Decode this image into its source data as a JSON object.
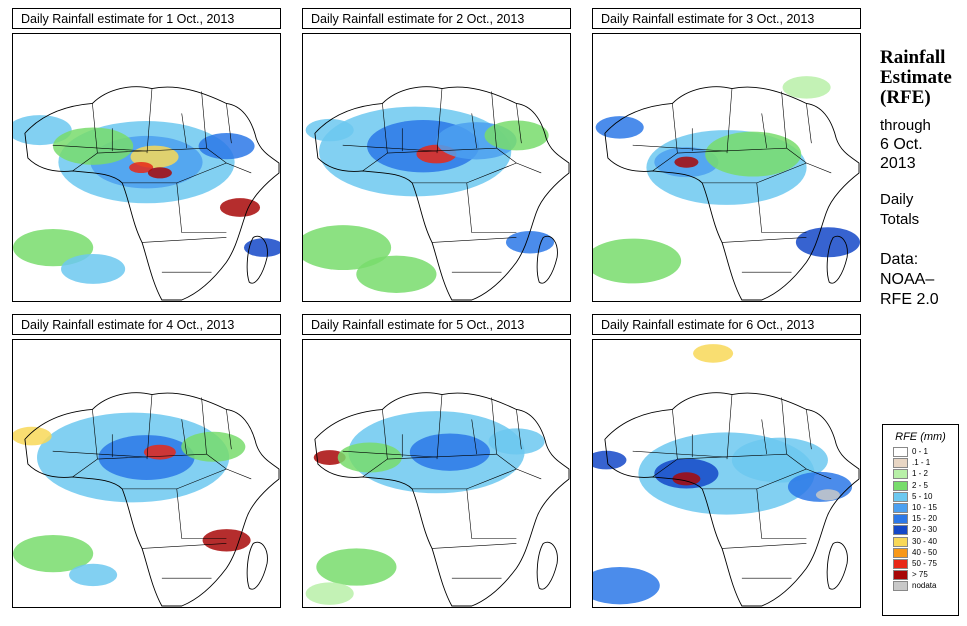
{
  "panels": [
    {
      "title": "Daily Rainfall estimate for  1 Oct., 2013",
      "blobs": [
        {
          "fx": 0.5,
          "fy": 0.48,
          "r": 0.22,
          "c": "c4"
        },
        {
          "fx": 0.5,
          "fy": 0.48,
          "r": 0.14,
          "c": "c5"
        },
        {
          "fx": 0.53,
          "fy": 0.46,
          "r": 0.06,
          "c": "c8"
        },
        {
          "fx": 0.48,
          "fy": 0.5,
          "r": 0.03,
          "c": "c10"
        },
        {
          "fx": 0.55,
          "fy": 0.52,
          "r": 0.03,
          "c": "c11"
        },
        {
          "fx": 0.1,
          "fy": 0.36,
          "r": 0.08,
          "c": "c4"
        },
        {
          "fx": 0.3,
          "fy": 0.42,
          "r": 0.1,
          "c": "c3"
        },
        {
          "fx": 0.8,
          "fy": 0.42,
          "r": 0.07,
          "c": "c6"
        },
        {
          "fx": 0.85,
          "fy": 0.65,
          "r": 0.05,
          "c": "c11"
        },
        {
          "fx": 0.94,
          "fy": 0.8,
          "r": 0.05,
          "c": "c7"
        },
        {
          "fx": 0.15,
          "fy": 0.8,
          "r": 0.1,
          "c": "c3"
        },
        {
          "fx": 0.3,
          "fy": 0.88,
          "r": 0.08,
          "c": "c4"
        }
      ]
    },
    {
      "title": "Daily Rainfall estimate for  2 Oct., 2013",
      "blobs": [
        {
          "fx": 0.42,
          "fy": 0.44,
          "r": 0.24,
          "c": "c4"
        },
        {
          "fx": 0.45,
          "fy": 0.42,
          "r": 0.14,
          "c": "c6"
        },
        {
          "fx": 0.5,
          "fy": 0.45,
          "r": 0.05,
          "c": "c10"
        },
        {
          "fx": 0.65,
          "fy": 0.4,
          "r": 0.1,
          "c": "c5"
        },
        {
          "fx": 0.8,
          "fy": 0.38,
          "r": 0.08,
          "c": "c3"
        },
        {
          "fx": 0.1,
          "fy": 0.36,
          "r": 0.06,
          "c": "c4"
        },
        {
          "fx": 0.85,
          "fy": 0.78,
          "r": 0.06,
          "c": "c6"
        },
        {
          "fx": 0.15,
          "fy": 0.8,
          "r": 0.12,
          "c": "c3"
        },
        {
          "fx": 0.35,
          "fy": 0.9,
          "r": 0.1,
          "c": "c3"
        }
      ]
    },
    {
      "title": "Daily Rainfall estimate for  3 Oct., 2013",
      "blobs": [
        {
          "fx": 0.5,
          "fy": 0.5,
          "r": 0.2,
          "c": "c4"
        },
        {
          "fx": 0.35,
          "fy": 0.48,
          "r": 0.08,
          "c": "c5"
        },
        {
          "fx": 0.35,
          "fy": 0.48,
          "r": 0.03,
          "c": "c11"
        },
        {
          "fx": 0.6,
          "fy": 0.45,
          "r": 0.12,
          "c": "c3"
        },
        {
          "fx": 0.1,
          "fy": 0.35,
          "r": 0.06,
          "c": "c6"
        },
        {
          "fx": 0.88,
          "fy": 0.78,
          "r": 0.08,
          "c": "c7"
        },
        {
          "fx": 0.15,
          "fy": 0.85,
          "r": 0.12,
          "c": "c3"
        },
        {
          "fx": 0.8,
          "fy": 0.2,
          "r": 0.06,
          "c": "c2"
        }
      ]
    },
    {
      "title": "Daily Rainfall estimate for  4 Oct., 2013",
      "blobs": [
        {
          "fx": 0.45,
          "fy": 0.44,
          "r": 0.24,
          "c": "c4"
        },
        {
          "fx": 0.5,
          "fy": 0.44,
          "r": 0.12,
          "c": "c6"
        },
        {
          "fx": 0.55,
          "fy": 0.42,
          "r": 0.04,
          "c": "c10"
        },
        {
          "fx": 0.07,
          "fy": 0.36,
          "r": 0.05,
          "c": "c8"
        },
        {
          "fx": 0.75,
          "fy": 0.4,
          "r": 0.08,
          "c": "c3"
        },
        {
          "fx": 0.8,
          "fy": 0.75,
          "r": 0.06,
          "c": "c11"
        },
        {
          "fx": 0.15,
          "fy": 0.8,
          "r": 0.1,
          "c": "c3"
        },
        {
          "fx": 0.3,
          "fy": 0.88,
          "r": 0.06,
          "c": "c4"
        }
      ]
    },
    {
      "title": "Daily Rainfall estimate for  5 Oct., 2013",
      "blobs": [
        {
          "fx": 0.5,
          "fy": 0.42,
          "r": 0.22,
          "c": "c4"
        },
        {
          "fx": 0.55,
          "fy": 0.42,
          "r": 0.1,
          "c": "c6"
        },
        {
          "fx": 0.1,
          "fy": 0.44,
          "r": 0.04,
          "c": "c11"
        },
        {
          "fx": 0.25,
          "fy": 0.44,
          "r": 0.08,
          "c": "c3"
        },
        {
          "fx": 0.8,
          "fy": 0.38,
          "r": 0.07,
          "c": "c4"
        },
        {
          "fx": 0.2,
          "fy": 0.85,
          "r": 0.1,
          "c": "c3"
        },
        {
          "fx": 0.1,
          "fy": 0.95,
          "r": 0.06,
          "c": "c2"
        }
      ]
    },
    {
      "title": "Daily Rainfall estimate for  6 Oct., 2013",
      "blobs": [
        {
          "fx": 0.5,
          "fy": 0.5,
          "r": 0.22,
          "c": "c4"
        },
        {
          "fx": 0.35,
          "fy": 0.5,
          "r": 0.08,
          "c": "c7"
        },
        {
          "fx": 0.35,
          "fy": 0.52,
          "r": 0.035,
          "c": "c11"
        },
        {
          "fx": 0.7,
          "fy": 0.45,
          "r": 0.12,
          "c": "c4"
        },
        {
          "fx": 0.85,
          "fy": 0.55,
          "r": 0.08,
          "c": "c6"
        },
        {
          "fx": 0.88,
          "fy": 0.58,
          "r": 0.03,
          "c": "c12"
        },
        {
          "fx": 0.45,
          "fy": 0.05,
          "r": 0.05,
          "c": "c8"
        },
        {
          "fx": 0.05,
          "fy": 0.45,
          "r": 0.05,
          "c": "c7"
        },
        {
          "fx": 0.1,
          "fy": 0.92,
          "r": 0.1,
          "c": "c6"
        }
      ]
    }
  ],
  "sidebar": {
    "title_line1": "Rainfall",
    "title_line2": "Estimate",
    "title_line3": "(RFE)",
    "through": "through",
    "date_line1": "6 Oct.",
    "date_line2": "2013",
    "daily_line1": "Daily",
    "daily_line2": "Totals",
    "data_line1": "Data:",
    "data_line2": "NOAA–",
    "data_line3": "RFE 2.0"
  },
  "legend": {
    "title": "RFE (mm)",
    "items": [
      {
        "label": "0 - 1",
        "color": "#ffffff"
      },
      {
        "label": ".1 - 1",
        "color": "#e8d6c4"
      },
      {
        "label": "1 - 2",
        "color": "#b8f0a8"
      },
      {
        "label": "2 - 5",
        "color": "#78dc6c"
      },
      {
        "label": "5 - 10",
        "color": "#6cc8f0"
      },
      {
        "label": "10 - 15",
        "color": "#4ca0f0"
      },
      {
        "label": "15 - 20",
        "color": "#2c78e8"
      },
      {
        "label": "20 - 30",
        "color": "#1448c8"
      },
      {
        "label": "30 - 40",
        "color": "#f8d858"
      },
      {
        "label": "40 - 50",
        "color": "#f89818"
      },
      {
        "label": "50 - 75",
        "color": "#e82818"
      },
      {
        "label": "> 75",
        "color": "#a80808"
      },
      {
        "label": "nodata",
        "color": "#c8c8c8"
      }
    ]
  },
  "colors": {
    "c1": "#e8d6c4",
    "c2": "#b8f0a8",
    "c3": "#78dc6c",
    "c4": "#6cc8f0",
    "c5": "#4ca0f0",
    "c6": "#2c78e8",
    "c7": "#1448c8",
    "c8": "#f8d858",
    "c9": "#f89818",
    "c10": "#e82818",
    "c11": "#a80808",
    "c12": "#c8c8c8"
  }
}
